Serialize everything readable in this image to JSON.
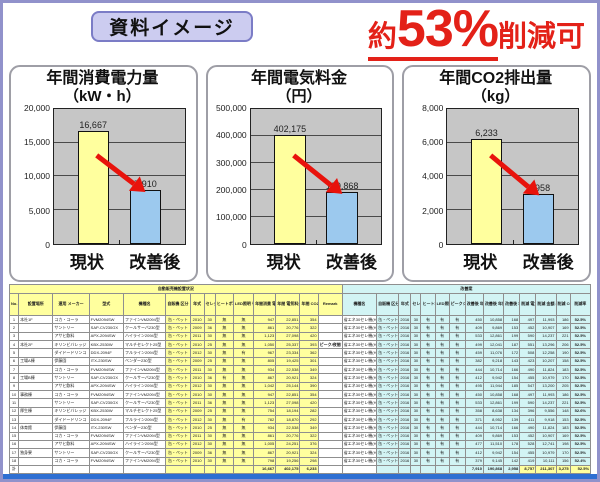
{
  "header": {
    "badge_label": "資料イメージ",
    "headline_prefix": "約",
    "headline_percent": "53%",
    "headline_suffix": "削減可"
  },
  "colors": {
    "accent_red": "#e32118",
    "badge_fill": "#ccccf0",
    "badge_border": "#7b7cc6",
    "frame_border": "#9192cb",
    "plot_bg": "#c6c6c6",
    "bar_current": "#ffff9e",
    "bar_improved": "#9cc9ee",
    "table_yellow": "#ffff9e",
    "table_cyan": "#d2f4f4",
    "bottom_strip": "#2e6fd2"
  },
  "chart_data": [
    {
      "type": "bar",
      "title": "年間消費電力量",
      "unit": "（kW・h）",
      "categories": [
        "現状",
        "改善後"
      ],
      "values": [
        16667,
        7910
      ],
      "values_display": [
        "16,667",
        "7,910"
      ],
      "ylim": [
        0,
        20000
      ],
      "yticks": [
        "0",
        "5,000",
        "10,000",
        "15,000",
        "20,000"
      ],
      "grid": true,
      "legend": "none"
    },
    {
      "type": "bar",
      "title": "年間電気料金",
      "unit": "（円）",
      "categories": [
        "現状",
        "改善後"
      ],
      "values": [
        402175,
        190868
      ],
      "values_display": [
        "402,175",
        "190,868"
      ],
      "ylim": [
        0,
        500000
      ],
      "yticks": [
        "0",
        "100,000",
        "200,000",
        "300,000",
        "400,000",
        "500,000"
      ],
      "grid": true,
      "legend": "none"
    },
    {
      "type": "bar",
      "title": "年間CO2排出量",
      "unit": "（kg）",
      "categories": [
        "現状",
        "改善後"
      ],
      "values": [
        6233,
        2958
      ],
      "values_display": [
        "6,233",
        "2,958"
      ],
      "ylim": [
        0,
        8000
      ],
      "yticks": [
        "0",
        "2,000",
        "4,000",
        "6,000",
        "8,000"
      ],
      "grid": true,
      "legend": "none"
    }
  ],
  "table": {
    "left_title": "自動販売機設置状況",
    "right_title": "改善案",
    "left_headers": [
      "No.",
      "設置場所",
      "運用\nメーカー",
      "型式",
      "機種名",
      "自販機\n区分",
      "年式",
      "セレク\nション",
      "ヒートポンプ\n有/無",
      "LED照明\n有/無",
      "年間消費\n電力量\n(kW・h)",
      "年間\n電気料金\n(円)",
      "年間\nCO2排出量\n(kg)",
      "Remark"
    ],
    "right_headers": [
      "機種名",
      "自販機\n区分",
      "年式",
      "セレク\nション",
      "ヒートポンプ\n有/無",
      "LED照明\n有/無",
      "ピークシフト\n機能有無",
      "改善後\n年間消費\n電力量\n(kW・h)",
      "改善後\n年間\n電気料金\n(円)",
      "改善後\n年間CO2\n排出量\n(kg)",
      "削減\n電力量\n(kW・h)",
      "削減\n金額\n(円)",
      "削減\nCO2\n(kg)",
      "削減率"
    ],
    "remark_row": 3,
    "rows": [
      [
        "1",
        "本社1F",
        "コカ・コーラ",
        "FVM2094SW",
        "ファインVM2094型",
        "缶・ペット",
        "2010",
        "30",
        "無",
        "無",
        "947",
        "22,851",
        "354",
        "",
        "省エネ30セレ機(HP)",
        "缶・ペット",
        "2016",
        "30",
        "有",
        "有",
        "有",
        "450",
        "10,858",
        "168",
        "497",
        "11,993",
        "186",
        "52.5%"
      ],
      [
        "2",
        "",
        "サントリー",
        "SAP-CV230GX",
        "クールサーバ230型",
        "缶・ペット",
        "2009",
        "36",
        "無",
        "無",
        "861",
        "20,776",
        "322",
        "",
        "省エネ30セレ機(HP)",
        "缶・ペット",
        "2016",
        "30",
        "有",
        "有",
        "有",
        "409",
        "9,869",
        "153",
        "452",
        "10,907",
        "169",
        "52.5%"
      ],
      [
        "3",
        "",
        "アサヒ飲料",
        "APX-2094SW",
        "ハイライン2094型",
        "缶・ペット",
        "2011",
        "30",
        "無",
        "無",
        "1,123",
        "27,098",
        "420",
        "",
        "省エネ30セレ機(HP)",
        "缶・ペット",
        "2016",
        "30",
        "有",
        "有",
        "有",
        "533",
        "12,861",
        "199",
        "590",
        "14,237",
        "221",
        "52.5%"
      ],
      [
        "4",
        "本社2F",
        "キリンビバレッジ",
        "KBX-2530W",
        "マルチセレクト25型",
        "缶・ペット",
        "2010",
        "25",
        "無",
        "無",
        "1,050",
        "25,337",
        "393",
        "ピーク/夜間\n切替対応",
        "省エネ30セレ機(HP)",
        "缶・ペット",
        "2016",
        "30",
        "有",
        "有",
        "有",
        "499",
        "12,041",
        "187",
        "551",
        "13,296",
        "206",
        "52.5%"
      ],
      [
        "5",
        "",
        "ダイドードリンコ",
        "DDX-2094F",
        "フルライン2094型",
        "缶・ペット",
        "2012",
        "30",
        "無",
        "有",
        "967",
        "23,334",
        "362",
        "",
        "省エネ30セレ機(HP)",
        "缶・ペット",
        "2016",
        "30",
        "有",
        "有",
        "有",
        "459",
        "11,076",
        "172",
        "508",
        "12,258",
        "190",
        "52.5%"
      ],
      [
        "6",
        "工場A棟",
        "伊藤園",
        "ITX-230SW",
        "ベンダー230型",
        "缶・ペット",
        "2009",
        "25",
        "無",
        "無",
        "805",
        "19,425",
        "301",
        "",
        "省エネ30セレ機(HP)",
        "缶・ペット",
        "2016",
        "30",
        "有",
        "有",
        "有",
        "382",
        "9,218",
        "143",
        "423",
        "10,207",
        "158",
        "52.5%"
      ],
      [
        "7",
        "",
        "コカ・コーラ",
        "FVM2094SW",
        "ファインVM2094型",
        "缶・ペット",
        "2011",
        "30",
        "無",
        "無",
        "934",
        "22,538",
        "349",
        "",
        "省エネ30セレ機(HP)",
        "缶・ペット",
        "2016",
        "30",
        "有",
        "有",
        "有",
        "444",
        "10,714",
        "166",
        "490",
        "11,824",
        "183",
        "52.5%"
      ],
      [
        "8",
        "工場B棟",
        "サントリー",
        "SAP-CV230GX",
        "クールサーバ230型",
        "缶・ペット",
        "2010",
        "36",
        "有",
        "無",
        "867",
        "20,921",
        "324",
        "",
        "省エネ30セレ機(HP)",
        "缶・ペット",
        "2016",
        "30",
        "有",
        "有",
        "有",
        "412",
        "9,942",
        "154",
        "455",
        "10,979",
        "170",
        "52.5%"
      ],
      [
        "9",
        "",
        "アサヒ飲料",
        "APX-2094SW",
        "ハイライン2094型",
        "缶・ペット",
        "2012",
        "30",
        "無",
        "無",
        "1,042",
        "25,144",
        "390",
        "",
        "省エネ30セレ機(HP)",
        "缶・ペット",
        "2016",
        "30",
        "有",
        "有",
        "有",
        "495",
        "11,944",
        "185",
        "547",
        "13,200",
        "205",
        "52.5%"
      ],
      [
        "10",
        "事務棟",
        "コカ・コーラ",
        "FVM2094SW",
        "ファインVM2094型",
        "缶・ペット",
        "2010",
        "30",
        "無",
        "無",
        "947",
        "22,851",
        "354",
        "",
        "省エネ30セレ機(HP)",
        "缶・ペット",
        "2016",
        "30",
        "有",
        "有",
        "有",
        "450",
        "10,858",
        "168",
        "497",
        "11,993",
        "186",
        "52.5%"
      ],
      [
        "11",
        "",
        "サントリー",
        "SAP-CV230GX",
        "クールサーバ230型",
        "缶・ペット",
        "2011",
        "36",
        "無",
        "無",
        "1,123",
        "27,098",
        "420",
        "",
        "省エネ30セレ機(HP)",
        "缶・ペット",
        "2016",
        "30",
        "有",
        "有",
        "有",
        "533",
        "12,861",
        "199",
        "590",
        "14,237",
        "221",
        "52.5%"
      ],
      [
        "12",
        "厚生棟",
        "キリンビバレッジ",
        "KBX-2530W",
        "マルチセレクト25型",
        "缶・ペット",
        "2009",
        "25",
        "無",
        "無",
        "754",
        "18,194",
        "282",
        "",
        "省エネ30セレ機(HP)",
        "缶・ペット",
        "2016",
        "30",
        "有",
        "有",
        "有",
        "358",
        "8,638",
        "134",
        "396",
        "9,556",
        "148",
        "52.6%"
      ],
      [
        "13",
        "",
        "ダイドードリンコ",
        "DDX-2094F",
        "フルライン2094型",
        "缶・ペット",
        "2012",
        "30",
        "無",
        "有",
        "782",
        "18,870",
        "292",
        "",
        "省エネ30セレ機(HP)",
        "缶・ペット",
        "2016",
        "30",
        "有",
        "有",
        "有",
        "371",
        "8,952",
        "139",
        "411",
        "9,918",
        "153",
        "52.5%"
      ],
      [
        "14",
        "体育館",
        "伊藤園",
        "ITX-230SW",
        "ベンダー230型",
        "缶・ペット",
        "2010",
        "25",
        "無",
        "無",
        "934",
        "22,538",
        "349",
        "",
        "省エネ30セレ機(HP)",
        "缶・ペット",
        "2016",
        "30",
        "有",
        "有",
        "有",
        "444",
        "10,714",
        "166",
        "490",
        "11,824",
        "183",
        "52.5%"
      ],
      [
        "15",
        "",
        "コカ・コーラ",
        "FVM2094SW",
        "ファインVM2094型",
        "缶・ペット",
        "2011",
        "30",
        "無",
        "無",
        "861",
        "20,776",
        "322",
        "",
        "省エネ30セレ機(HP)",
        "缶・ペット",
        "2016",
        "30",
        "有",
        "有",
        "有",
        "409",
        "9,869",
        "153",
        "452",
        "10,907",
        "169",
        "52.5%"
      ],
      [
        "16",
        "",
        "アサヒ飲料",
        "APX-2094SW",
        "ハイライン2094型",
        "缶・ペット",
        "2012",
        "30",
        "無",
        "無",
        "1,005",
        "24,251",
        "376",
        "",
        "省エネ30セレ機(HP)",
        "缶・ペット",
        "2016",
        "30",
        "有",
        "有",
        "有",
        "477",
        "11,510",
        "178",
        "528",
        "12,741",
        "198",
        "52.5%"
      ],
      [
        "17",
        "独身寮",
        "サントリー",
        "SAP-CV230GX",
        "クールサーバ230型",
        "缶・ペット",
        "2009",
        "36",
        "無",
        "無",
        "867",
        "20,921",
        "324",
        "",
        "省エネ30セレ機(HP)",
        "缶・ペット",
        "2016",
        "30",
        "有",
        "有",
        "有",
        "412",
        "9,942",
        "154",
        "455",
        "10,979",
        "170",
        "52.5%"
      ],
      [
        "18",
        "",
        "コカ・コーラ",
        "FVM2094SW",
        "ファインVM2094型",
        "缶・ペット",
        "2010",
        "30",
        "無",
        "無",
        "798",
        "19,256",
        "298",
        "",
        "省エネ30セレ機(HP)",
        "缶・ペット",
        "2016",
        "30",
        "有",
        "有",
        "有",
        "379",
        "9,145",
        "142",
        "419",
        "10,111",
        "156",
        "52.4%"
      ]
    ],
    "total_row": [
      "計",
      "",
      "",
      "",
      "",
      "",
      "",
      "",
      "",
      "",
      "16,667",
      "402,175",
      "6,233",
      "",
      "",
      "",
      "",
      "",
      "",
      "",
      "",
      "7,910",
      "190,868",
      "2,958",
      "8,757",
      "211,307",
      "3,275",
      "52.5%"
    ]
  }
}
